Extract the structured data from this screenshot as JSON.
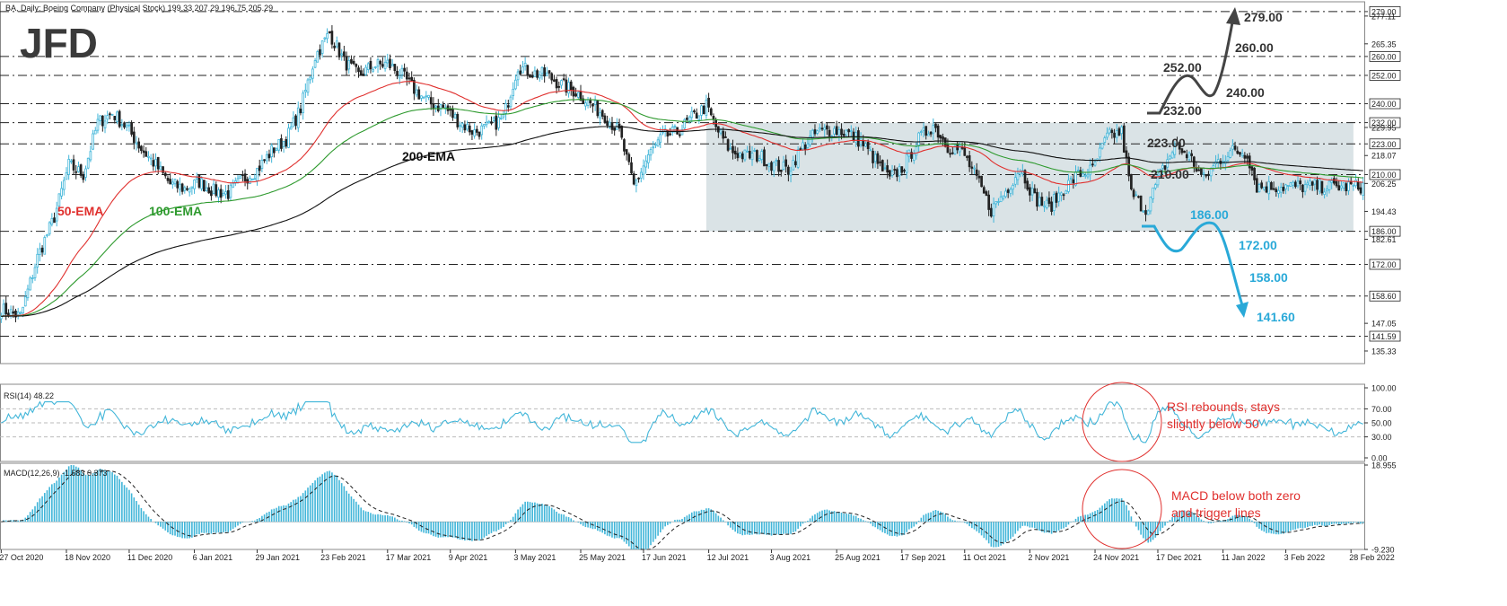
{
  "header": {
    "price_info": "BA, Daily: Boeing Company (Physical Stock)  199.33 207.29 196.75 205.29",
    "logo": "JFD",
    "rsi_label": "RSI(14) 48.22",
    "macd_label": "MACD(12,26,9) -1.583 0.373"
  },
  "colors": {
    "bull": "#42b6d9",
    "bear": "#222222",
    "ema50": "#e0302e",
    "ema100": "#2e9a2e",
    "ema200": "#111111",
    "range_box": "#d3dee2",
    "up_arrow": "#444444",
    "down_arrow": "#29a9d8",
    "note": "#e0302e"
  },
  "chart_data": [
    {
      "type": "candlestick",
      "name": "price",
      "title": "BA, Daily: Boeing Company (Physical Stock)",
      "ylim": [
        130,
        282
      ],
      "y_ticks": [
        279.0,
        277.11,
        265.35,
        260.0,
        252.0,
        240.0,
        232.0,
        229.95,
        223.0,
        218.07,
        210.0,
        206.25,
        194.43,
        186.0,
        182.61,
        172.0,
        158.6,
        147.05,
        141.59,
        135.33
      ],
      "x_labels": [
        "27 Oct 2020",
        "18 Nov 2020",
        "11 Dec 2020",
        "6 Jan 2021",
        "29 Jan 2021",
        "23 Feb 2021",
        "17 Mar 2021",
        "9 Apr 2021",
        "3 May 2021",
        "25 May 2021",
        "17 Jun 2021",
        "12 Jul 2021",
        "3 Aug 2021",
        "25 Aug 2021",
        "17 Sep 2021",
        "11 Oct 2021",
        "2 Nov 2021",
        "24 Nov 2021",
        "17 Dec 2021",
        "11 Jan 2022",
        "3 Feb 2022",
        "28 Feb 2022"
      ],
      "close_anchors": [
        [
          0,
          153
        ],
        [
          8,
          150
        ],
        [
          15,
          175
        ],
        [
          22,
          192
        ],
        [
          28,
          214
        ],
        [
          34,
          210
        ],
        [
          40,
          232
        ],
        [
          46,
          236
        ],
        [
          52,
          230
        ],
        [
          58,
          221
        ],
        [
          64,
          214
        ],
        [
          70,
          206
        ],
        [
          76,
          204
        ],
        [
          82,
          207
        ],
        [
          88,
          203
        ],
        [
          94,
          202
        ],
        [
          100,
          208
        ],
        [
          106,
          212
        ],
        [
          112,
          220
        ],
        [
          118,
          225
        ],
        [
          124,
          238
        ],
        [
          130,
          260
        ],
        [
          136,
          270
        ],
        [
          142,
          258
        ],
        [
          148,
          252
        ],
        [
          154,
          256
        ],
        [
          160,
          257
        ],
        [
          166,
          252
        ],
        [
          172,
          245
        ],
        [
          178,
          240
        ],
        [
          184,
          238
        ],
        [
          190,
          232
        ],
        [
          196,
          228
        ],
        [
          202,
          230
        ],
        [
          208,
          234
        ],
        [
          214,
          256
        ],
        [
          220,
          253
        ],
        [
          226,
          252
        ],
        [
          232,
          248
        ],
        [
          238,
          245
        ],
        [
          244,
          240
        ],
        [
          250,
          235
        ],
        [
          256,
          228
        ],
        [
          262,
          205
        ],
        [
          268,
          218
        ],
        [
          274,
          226
        ],
        [
          280,
          228
        ],
        [
          286,
          234
        ],
        [
          292,
          239
        ],
        [
          296,
          230
        ],
        [
          302,
          220
        ],
        [
          308,
          218
        ],
        [
          314,
          218
        ],
        [
          320,
          214
        ],
        [
          326,
          212
        ],
        [
          332,
          222
        ],
        [
          338,
          228
        ],
        [
          344,
          229
        ],
        [
          350,
          228
        ],
        [
          356,
          224
        ],
        [
          362,
          216
        ],
        [
          368,
          208
        ],
        [
          374,
          214
        ],
        [
          380,
          225
        ],
        [
          386,
          231
        ],
        [
          392,
          222
        ],
        [
          398,
          220
        ],
        [
          404,
          208
        ],
        [
          410,
          195
        ],
        [
          416,
          203
        ],
        [
          422,
          213
        ],
        [
          428,
          200
        ],
        [
          434,
          196
        ],
        [
          440,
          204
        ],
        [
          446,
          210
        ],
        [
          452,
          212
        ],
        [
          458,
          226
        ],
        [
          464,
          228
        ],
        [
          468,
          202
        ],
        [
          474,
          195
        ],
        [
          480,
          210
        ],
        [
          486,
          222
        ],
        [
          492,
          218
        ],
        [
          498,
          208
        ],
        [
          504,
          216
        ],
        [
          510,
          220
        ],
        [
          516,
          219
        ],
        [
          520,
          205
        ]
      ],
      "levels": [
        279.0,
        260.0,
        252.0,
        240.0,
        232.0,
        223.0,
        210.0,
        186.0,
        172.0,
        158.0,
        141.6
      ],
      "range_box": {
        "from_bar": 292,
        "to_bar": 560,
        "top": 232.0,
        "bottom": 186.0
      },
      "series": [
        {
          "name": "50-EMA",
          "period": 50
        },
        {
          "name": "100-EMA",
          "period": 100
        },
        {
          "name": "200-EMA",
          "period": 200
        }
      ],
      "annotations": {
        "up_path": [
          "232.00",
          "252.00",
          "240.00",
          "260.00",
          "279.00"
        ],
        "right_labels": [
          "223.00",
          "210.00"
        ],
        "down_path": [
          "186.00",
          "172.00",
          "158.00",
          "141.60"
        ]
      }
    },
    {
      "type": "line",
      "name": "RSI(14)",
      "ylim": [
        0,
        100
      ],
      "y_ticks": [
        100.0,
        70.0,
        50.0,
        30.0,
        0.0
      ],
      "note": "RSI rebounds, stays slightly below 50"
    },
    {
      "type": "bar",
      "name": "MACD(12,26,9)",
      "ylim": [
        -9.23,
        18.955
      ],
      "y_ticks": [
        18.955,
        -9.23
      ],
      "series": [
        {
          "name": "MACD",
          "style": "histogram"
        },
        {
          "name": "signal",
          "style": "dashed-line"
        }
      ],
      "note": "MACD below both zero and trigger lines"
    }
  ]
}
